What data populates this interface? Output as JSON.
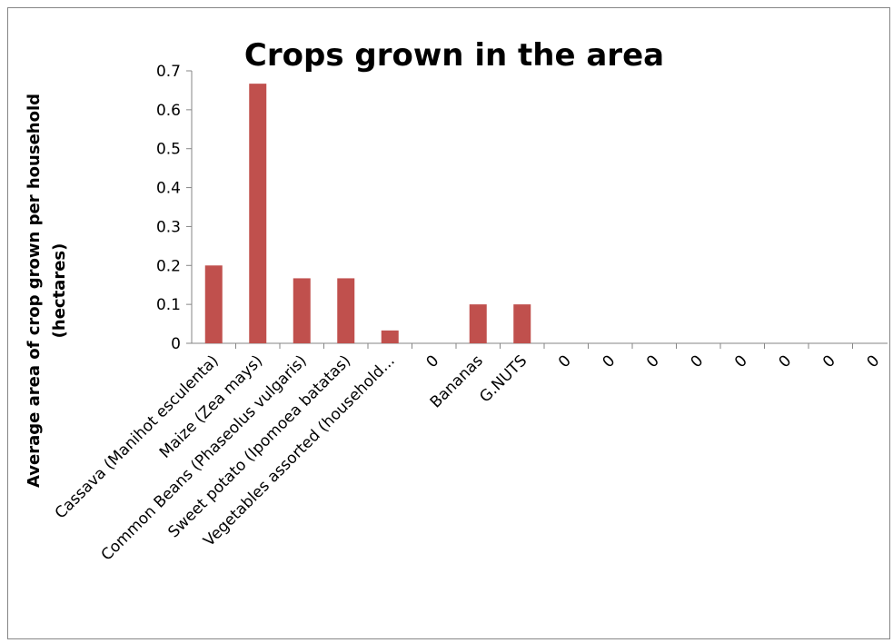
{
  "chart_data": {
    "type": "bar",
    "title": "Crops grown in the area",
    "xlabel": "",
    "ylabel_lines": [
      "Average area of crop grown per household",
      "(hectares)"
    ],
    "categories": [
      "Cassava (Manihot esculenta)",
      "Maize (Zea mays)",
      "Common Beans (Phaseolus vulgaris)",
      "Sweet potato (Ipomoea batatas)",
      "Vegetables assorted (household...",
      "0",
      "Bananas",
      "G.NUTS",
      "0",
      "0",
      "0",
      "0",
      "0",
      "0",
      "0",
      "0"
    ],
    "values": [
      0.2,
      0.667,
      0.167,
      0.167,
      0.033,
      0,
      0.1,
      0.1,
      0,
      0,
      0,
      0,
      0,
      0,
      0,
      0
    ],
    "ylim": [
      0,
      0.7
    ],
    "yticks": [
      "0",
      "0.1",
      "0.2",
      "0.3",
      "0.4",
      "0.5",
      "0.6",
      "0.7"
    ],
    "ytick_values": [
      0,
      0.1,
      0.2,
      0.3,
      0.4,
      0.5,
      0.6,
      0.7
    ],
    "grid": false,
    "legend": "none",
    "bar_color": "#c0504d",
    "axis_color": "#868686"
  }
}
